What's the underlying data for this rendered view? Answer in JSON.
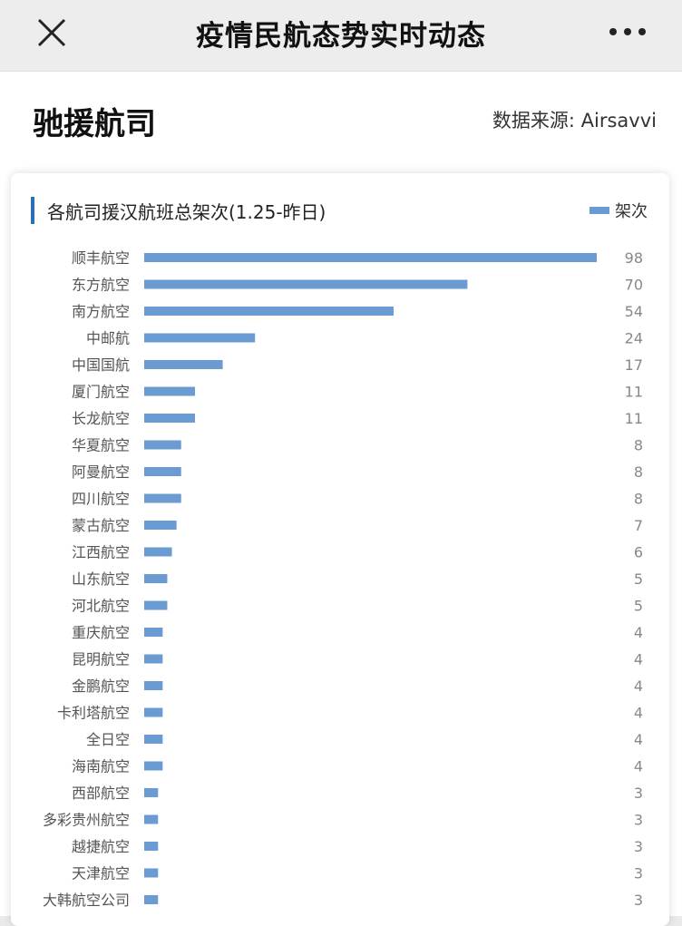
{
  "header": {
    "title": "疫情民航态势实时动态"
  },
  "page": {
    "section_title": "驰援航司",
    "source": "数据来源: Airsavvi"
  },
  "colors": {
    "bar": "#6a9bd2",
    "accent": "#2c6fb7"
  },
  "chart_data": {
    "type": "bar",
    "orientation": "horizontal",
    "title": "各航司援汉航班总架次(1.25-昨日)",
    "legend": "架次",
    "legend_position": "top-right",
    "categories": [
      "顺丰航空",
      "东方航空",
      "南方航空",
      "中邮航",
      "中国国航",
      "厦门航空",
      "长龙航空",
      "华夏航空",
      "阿曼航空",
      "四川航空",
      "蒙古航空",
      "江西航空",
      "山东航空",
      "河北航空",
      "重庆航空",
      "昆明航空",
      "金鹏航空",
      "卡利塔航空",
      "全日空",
      "海南航空",
      "西部航空",
      "多彩贵州航空",
      "越捷航空",
      "天津航空",
      "大韩航空公司"
    ],
    "values": [
      98,
      70,
      54,
      24,
      17,
      11,
      11,
      8,
      8,
      8,
      7,
      6,
      5,
      5,
      4,
      4,
      4,
      4,
      4,
      4,
      3,
      3,
      3,
      3,
      3
    ],
    "xlim": [
      0,
      98
    ],
    "grid": false
  }
}
